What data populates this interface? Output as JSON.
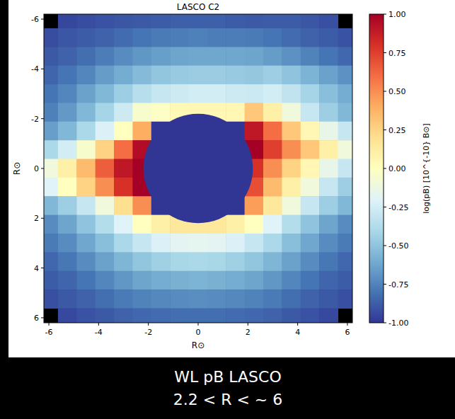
{
  "chart_data": {
    "type": "heatmap",
    "title": "LASCO C2",
    "x_label": "R⊙",
    "y_label": "R⊙",
    "x": [
      -6,
      -5.25,
      -4.5,
      -3.75,
      -3,
      -2.25,
      -1.5,
      -0.75,
      0,
      0.75,
      1.5,
      2.25,
      3,
      3.75,
      4.5,
      5.25,
      6
    ],
    "y": [
      -6,
      -5.25,
      -4.5,
      -3.75,
      -3,
      -2.25,
      -1.5,
      -0.75,
      0,
      0.75,
      1.5,
      2.25,
      3,
      3.75,
      4.5,
      5.25,
      6
    ],
    "values": [
      [
        null,
        -0.95,
        -0.93,
        -0.91,
        -0.9,
        -0.89,
        -0.88,
        -0.87,
        -0.87,
        -0.87,
        -0.88,
        -0.89,
        -0.88,
        -0.88,
        -0.9,
        -0.92,
        null
      ],
      [
        -0.93,
        -0.9,
        -0.88,
        -0.86,
        -0.83,
        -0.8,
        -0.78,
        -0.77,
        -0.76,
        -0.77,
        -0.77,
        -0.78,
        -0.8,
        -0.83,
        -0.86,
        -0.88,
        -0.91
      ],
      [
        -0.89,
        -0.86,
        -0.82,
        -0.77,
        -0.72,
        -0.68,
        -0.65,
        -0.63,
        -0.62,
        -0.62,
        -0.62,
        -0.63,
        -0.66,
        -0.7,
        -0.75,
        -0.8,
        -0.84
      ],
      [
        -0.85,
        -0.8,
        -0.74,
        -0.66,
        -0.6,
        -0.54,
        -0.49,
        -0.47,
        -0.46,
        -0.46,
        -0.47,
        -0.48,
        -0.45,
        -0.5,
        -0.57,
        -0.64,
        -0.7
      ],
      [
        -0.8,
        -0.74,
        -0.64,
        -0.55,
        -0.45,
        -0.36,
        -0.3,
        -0.27,
        -0.25,
        -0.25,
        -0.27,
        -0.28,
        -0.25,
        -0.32,
        -0.42,
        -0.52,
        -0.6
      ],
      [
        -0.76,
        -0.67,
        -0.55,
        -0.42,
        -0.27,
        -0.05,
        -0.02,
        0.04,
        0.05,
        0.05,
        0.05,
        0.3,
        0.1,
        -0.1,
        -0.3,
        -0.45,
        -0.55
      ],
      [
        -0.65,
        -0.55,
        -0.4,
        -0.22,
        0.0,
        0.4,
        -1,
        -1,
        -1,
        -1,
        -1,
        0.9,
        0.6,
        0.3,
        0.05,
        -0.15,
        -0.3
      ],
      [
        -0.4,
        -0.25,
        -0.05,
        0.25,
        0.6,
        0.95,
        -1,
        -1,
        -1,
        -1,
        -1,
        1.0,
        0.75,
        0.5,
        0.3,
        0.1,
        -0.1
      ],
      [
        -0.1,
        0.1,
        0.35,
        0.65,
        0.9,
        1.0,
        -1,
        -1,
        -1,
        -1,
        -1,
        0.8,
        0.5,
        0.25,
        0.05,
        -0.15,
        -0.3
      ],
      [
        -0.2,
        0.0,
        0.25,
        0.5,
        0.8,
        1.0,
        -1,
        -1,
        -1,
        -1,
        -1,
        0.7,
        0.35,
        0.1,
        -0.1,
        -0.3,
        -0.45
      ],
      [
        -0.55,
        -0.45,
        -0.3,
        -0.1,
        0.2,
        0.5,
        -1,
        -1,
        -1,
        -1,
        -1,
        0.45,
        0.15,
        -0.1,
        -0.3,
        -0.45,
        -0.55
      ],
      [
        -0.72,
        -0.63,
        -0.5,
        -0.37,
        -0.2,
        0.0,
        0.1,
        0.15,
        0.15,
        0.15,
        0.1,
        0.0,
        -0.2,
        -0.37,
        -0.5,
        -0.63,
        -0.72
      ],
      [
        -0.78,
        -0.72,
        -0.62,
        -0.52,
        -0.4,
        -0.3,
        -0.22,
        -0.18,
        -0.17,
        -0.18,
        -0.22,
        -0.3,
        -0.4,
        -0.52,
        -0.62,
        -0.72,
        -0.78
      ],
      [
        -0.84,
        -0.79,
        -0.72,
        -0.64,
        -0.56,
        -0.49,
        -0.44,
        -0.41,
        -0.4,
        -0.41,
        -0.44,
        -0.49,
        -0.56,
        -0.64,
        -0.72,
        -0.79,
        -0.84
      ],
      [
        -0.88,
        -0.85,
        -0.8,
        -0.74,
        -0.68,
        -0.63,
        -0.6,
        -0.58,
        -0.57,
        -0.58,
        -0.6,
        -0.63,
        -0.68,
        -0.74,
        -0.8,
        -0.85,
        -0.88
      ],
      [
        -0.92,
        -0.89,
        -0.86,
        -0.82,
        -0.78,
        -0.75,
        -0.73,
        -0.72,
        -0.71,
        -0.72,
        -0.73,
        -0.75,
        -0.78,
        -0.82,
        -0.86,
        -0.89,
        -0.92
      ],
      [
        null,
        -0.94,
        -0.91,
        -0.89,
        -0.86,
        -0.84,
        -0.83,
        -0.82,
        -0.82,
        -0.82,
        -0.83,
        -0.84,
        -0.86,
        -0.89,
        -0.91,
        -0.94,
        null
      ]
    ],
    "occulter_radius": 2.2,
    "xlim": [
      -6.2,
      6.2
    ],
    "ylim": [
      6.2,
      -6.2
    ],
    "xticks": [
      -6,
      -4,
      -2,
      0,
      2,
      4,
      6
    ],
    "yticks": [
      -6,
      -4,
      -2,
      0,
      2,
      4,
      6
    ],
    "colorbar": {
      "label": "log(pB) [10^{-10} B⊙]",
      "range": [
        -1,
        1
      ],
      "ticks": [
        {
          "value": -1,
          "label": "-1.00"
        },
        {
          "value": -0.75,
          "label": "-0.75"
        },
        {
          "value": -0.5,
          "label": "-0.50"
        },
        {
          "value": -0.25,
          "label": "-0.25"
        },
        {
          "value": 0,
          "label": "0.00"
        },
        {
          "value": 0.25,
          "label": "0.25"
        },
        {
          "value": 0.5,
          "label": "0.50"
        },
        {
          "value": 0.75,
          "label": "0.75"
        },
        {
          "value": 1,
          "label": "1.00"
        }
      ]
    }
  },
  "caption": {
    "lines": [
      "WL pB LASCO",
      "2.2 < R < ~ 6"
    ]
  }
}
